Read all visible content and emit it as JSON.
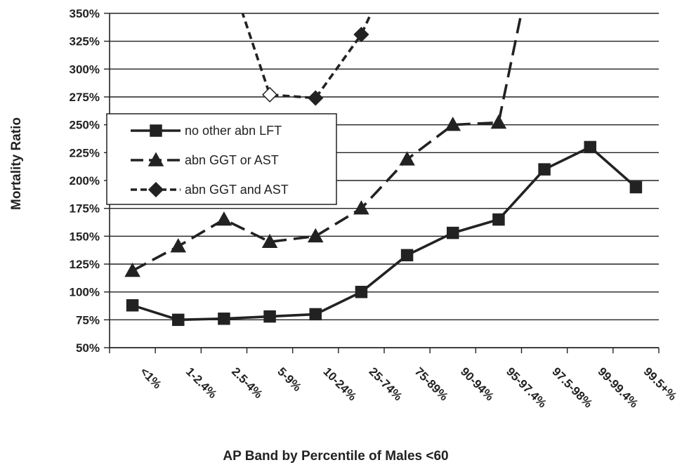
{
  "chart_data": {
    "type": "line",
    "title": "",
    "xlabel": "AP Band by Percentile of Males <60",
    "ylabel": "Mortality Ratio",
    "categories": [
      "<1%",
      "1-2.4%",
      "2.5-4%",
      "5-9%",
      "10-24%",
      "25-74%",
      "75-89%",
      "90-94%",
      "95-97.4%",
      "97.5-98%",
      "99-99.4%",
      "99.5+%"
    ],
    "y_ticks": [
      "50%",
      "75%",
      "100%",
      "125%",
      "150%",
      "175%",
      "200%",
      "225%",
      "250%",
      "275%",
      "300%",
      "325%",
      "350%"
    ],
    "ylim": [
      50,
      350
    ],
    "y_unit": "%",
    "grid": true,
    "legend_position": "upper-left",
    "series": [
      {
        "name": "no other abn LFT",
        "marker": "square",
        "line_style": "solid",
        "color": "#222222",
        "values": [
          88,
          75,
          76,
          78,
          80,
          100,
          133,
          153,
          165,
          210,
          230,
          194
        ]
      },
      {
        "name": "abn GGT or AST",
        "marker": "triangle",
        "line_style": "long-dash",
        "color": "#222222",
        "values": [
          119,
          141,
          165,
          145,
          150,
          175,
          219,
          250,
          252,
          450,
          null,
          null
        ]
      },
      {
        "name": "abn GGT and AST",
        "marker": "diamond",
        "line_style": "short-dash",
        "color": "#222222",
        "values": [
          null,
          null,
          400,
          277,
          274,
          331,
          420,
          null,
          null,
          null,
          null,
          null
        ],
        "hidden_markers": [
          2,
          6
        ],
        "open_markers": [
          3
        ]
      }
    ]
  }
}
